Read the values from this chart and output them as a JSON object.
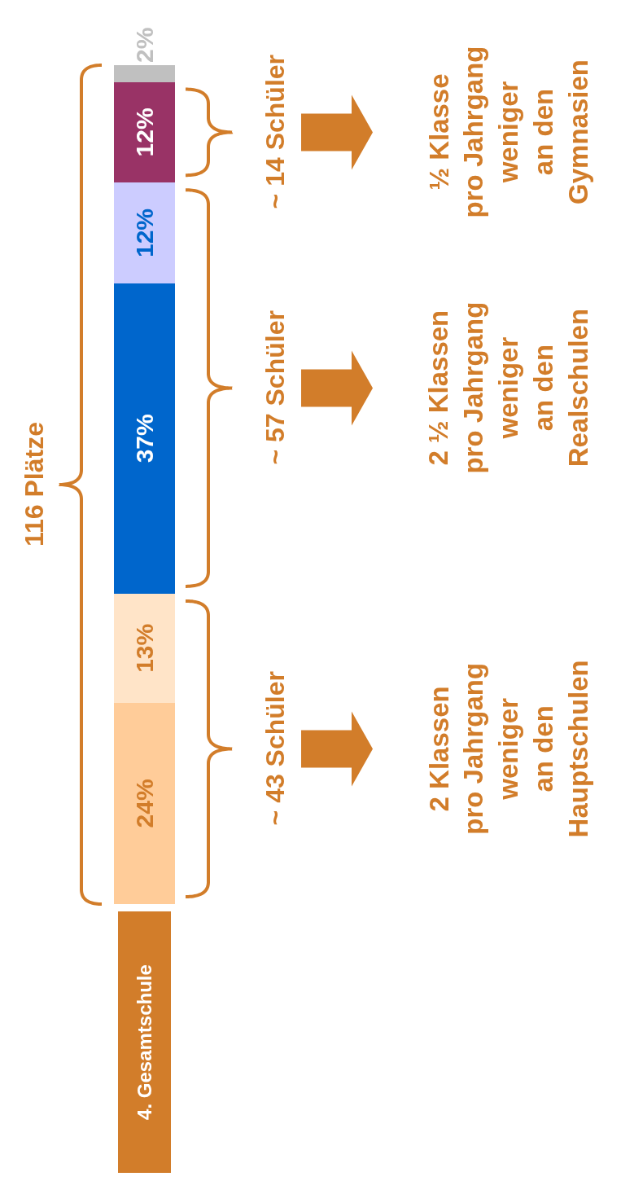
{
  "chart_data": {
    "type": "bar",
    "stacked": true,
    "tick_labels": false,
    "categories": [
      "4. Gesamtschule"
    ],
    "series": [
      {
        "color": "#ffcc99",
        "values": [
          24
        ],
        "value_labels": [
          "24%"
        ]
      },
      {
        "color": "#ffe4c8",
        "values": [
          13
        ],
        "value_labels": [
          "13%"
        ]
      },
      {
        "color": "#0066cc",
        "values": [
          37
        ],
        "value_labels": [
          "37%"
        ]
      },
      {
        "color": "#ccccff",
        "values": [
          12
        ],
        "value_labels": [
          "12%"
        ]
      },
      {
        "color": "#993366",
        "values": [
          12
        ],
        "value_labels": [
          "12%"
        ]
      },
      {
        "color": "#c0c0c0",
        "values": [
          2
        ],
        "value_labels": [
          "2%"
        ]
      }
    ],
    "annotations": [
      "116 Plätze",
      "~ 43 Schüler",
      "2 Klassen\npro Jahrgang\nweniger\nan den\nHauptschulen",
      "~ 57 Schüler",
      "2 ½ Klassen\npro Jahrgang\nweniger\nan den\nRealschulen",
      "~ 14 Schüler",
      "½ Klasse\npro Jahrgang\nweniger\nan den\nGymnasien"
    ]
  }
}
